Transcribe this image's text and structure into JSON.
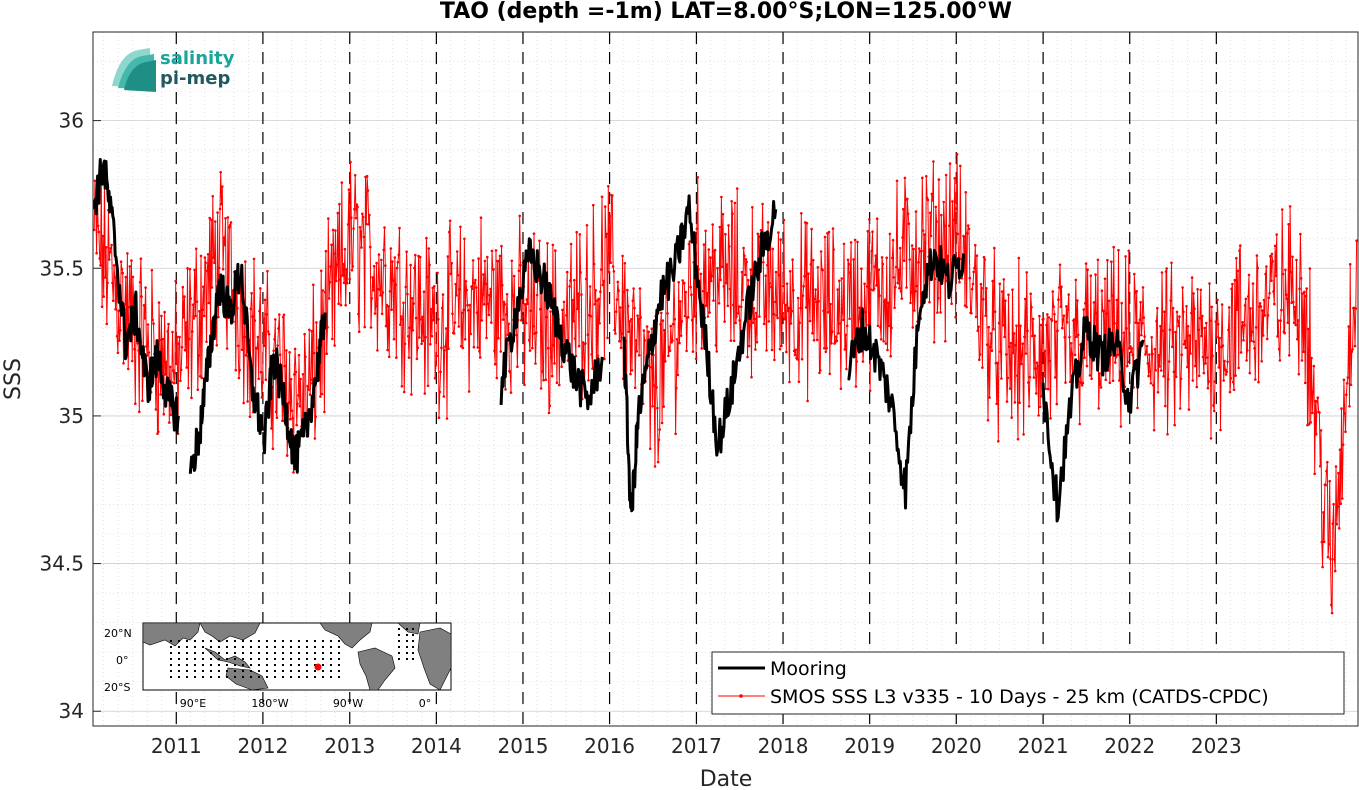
{
  "chart_data": {
    "type": "line",
    "title": "TAO (depth =-1m) LAT=8.00°S;LON=125.00°W",
    "xlabel": "Date",
    "ylabel": "SSS",
    "xlim": [
      "2010-01-15",
      "2024-08-20"
    ],
    "ylim": [
      33.95,
      36.3
    ],
    "yticks": [
      34,
      34.5,
      35,
      35.5,
      36
    ],
    "ytick_labels": [
      "34",
      "34.5",
      "35",
      "35.5",
      "36"
    ],
    "xtick_labels": [
      "2011",
      "2012",
      "2013",
      "2014",
      "2015",
      "2016",
      "2017",
      "2018",
      "2019",
      "2020",
      "2021",
      "2022",
      "2023"
    ],
    "grid": true,
    "year_boundaries_dashed": true,
    "legend_position": "bottom-right",
    "series": [
      {
        "name": "Mooring",
        "color": "#000000",
        "style": "thick-line",
        "segments": [
          {
            "x": [
              "2010-01-20",
              "2010-03-01",
              "2010-04-15",
              "2010-06-01",
              "2010-07-15",
              "2010-09-01",
              "2010-10-15",
              "2010-12-01",
              "2011-01-10"
            ],
            "y": [
              35.72,
              35.85,
              35.6,
              35.25,
              35.35,
              35.1,
              35.2,
              35.05,
              35.0
            ]
          },
          {
            "x": [
              "2011-03-01",
              "2011-04-10",
              "2011-05-20",
              "2011-07-01",
              "2011-08-15",
              "2011-10-01",
              "2011-11-15",
              "2011-12-30"
            ],
            "y": [
              34.8,
              34.95,
              35.2,
              35.45,
              35.35,
              35.5,
              35.1,
              34.95
            ]
          },
          {
            "x": [
              "2012-01-05",
              "2012-02-15",
              "2012-04-01",
              "2012-05-15",
              "2012-07-01",
              "2012-08-15",
              "2012-09-20"
            ],
            "y": [
              34.9,
              35.2,
              35.05,
              34.85,
              34.95,
              35.15,
              35.35
            ]
          },
          {
            "x": [
              "2014-10-01",
              "2014-12-01",
              "2015-02-01",
              "2015-04-01",
              "2015-06-01",
              "2015-08-01",
              "2015-10-01",
              "2015-12-01"
            ],
            "y": [
              35.1,
              35.35,
              35.55,
              35.45,
              35.3,
              35.15,
              35.05,
              35.2
            ]
          },
          {
            "x": [
              "2016-03-01",
              "2016-04-01",
              "2016-05-01",
              "2016-06-15",
              "2016-08-01",
              "2016-10-01",
              "2016-12-01",
              "2017-02-01",
              "2017-04-01",
              "2017-06-01",
              "2017-08-01",
              "2017-10-01",
              "2017-12-01"
            ],
            "y": [
              35.25,
              34.65,
              35.0,
              35.2,
              35.4,
              35.5,
              35.7,
              35.3,
              34.9,
              35.1,
              35.35,
              35.55,
              35.7
            ]
          },
          {
            "x": [
              "2018-10-01",
              "2018-12-01",
              "2019-02-01",
              "2019-04-01",
              "2019-06-01",
              "2019-08-01",
              "2019-10-01",
              "2019-12-01",
              "2020-02-01"
            ],
            "y": [
              35.15,
              35.3,
              35.2,
              35.05,
              34.75,
              35.4,
              35.55,
              35.45,
              35.55
            ]
          },
          {
            "x": [
              "2021-01-01",
              "2021-03-01",
              "2021-05-01",
              "2021-07-01",
              "2021-09-01",
              "2021-11-01",
              "2022-01-01",
              "2022-03-01"
            ],
            "y": [
              35.1,
              34.7,
              35.05,
              35.3,
              35.2,
              35.25,
              35.05,
              35.25
            ]
          }
        ]
      },
      {
        "name": "SMOS SSS L3 v335 - 10 Days - 25 km (CATDS-CPDC)",
        "color": "#ff0000",
        "style": "thin-line-markers",
        "interval_days": 10,
        "x_start": "2010-01-20",
        "x_end": "2024-08-15",
        "envelope_x": [
          "2010-01",
          "2010-07",
          "2011-01",
          "2011-07",
          "2012-01",
          "2012-07",
          "2013-01",
          "2013-07",
          "2014-01",
          "2014-07",
          "2015-01",
          "2015-07",
          "2016-01",
          "2016-07",
          "2017-01",
          "2017-07",
          "2018-01",
          "2018-07",
          "2019-01",
          "2019-07",
          "2020-01",
          "2020-07",
          "2021-01",
          "2021-07",
          "2022-01",
          "2022-07",
          "2023-01",
          "2023-07",
          "2024-01",
          "2024-05",
          "2024-08"
        ],
        "envelope_y": [
          35.65,
          35.3,
          35.15,
          35.55,
          35.2,
          35.05,
          35.6,
          35.45,
          35.3,
          35.4,
          35.35,
          35.3,
          35.5,
          35.05,
          35.5,
          35.45,
          35.4,
          35.35,
          35.4,
          35.55,
          35.6,
          35.2,
          35.2,
          35.25,
          35.25,
          35.2,
          35.25,
          35.35,
          35.45,
          34.45,
          35.45
        ],
        "noise_amplitude": 0.22
      }
    ]
  },
  "map_inset": {
    "lat_labels": [
      "20°N",
      "0°",
      "20°S"
    ],
    "lon_labels": [
      "90°E",
      "180°W",
      "90°W",
      "0°"
    ],
    "land_color": "#808080",
    "ocean_color": "#ffffff",
    "marker_color": "#ff0000"
  },
  "logo": {
    "line1": "salinity",
    "line2": "pi-mep",
    "color1": "#1aa59a",
    "color2": "#23595c"
  }
}
